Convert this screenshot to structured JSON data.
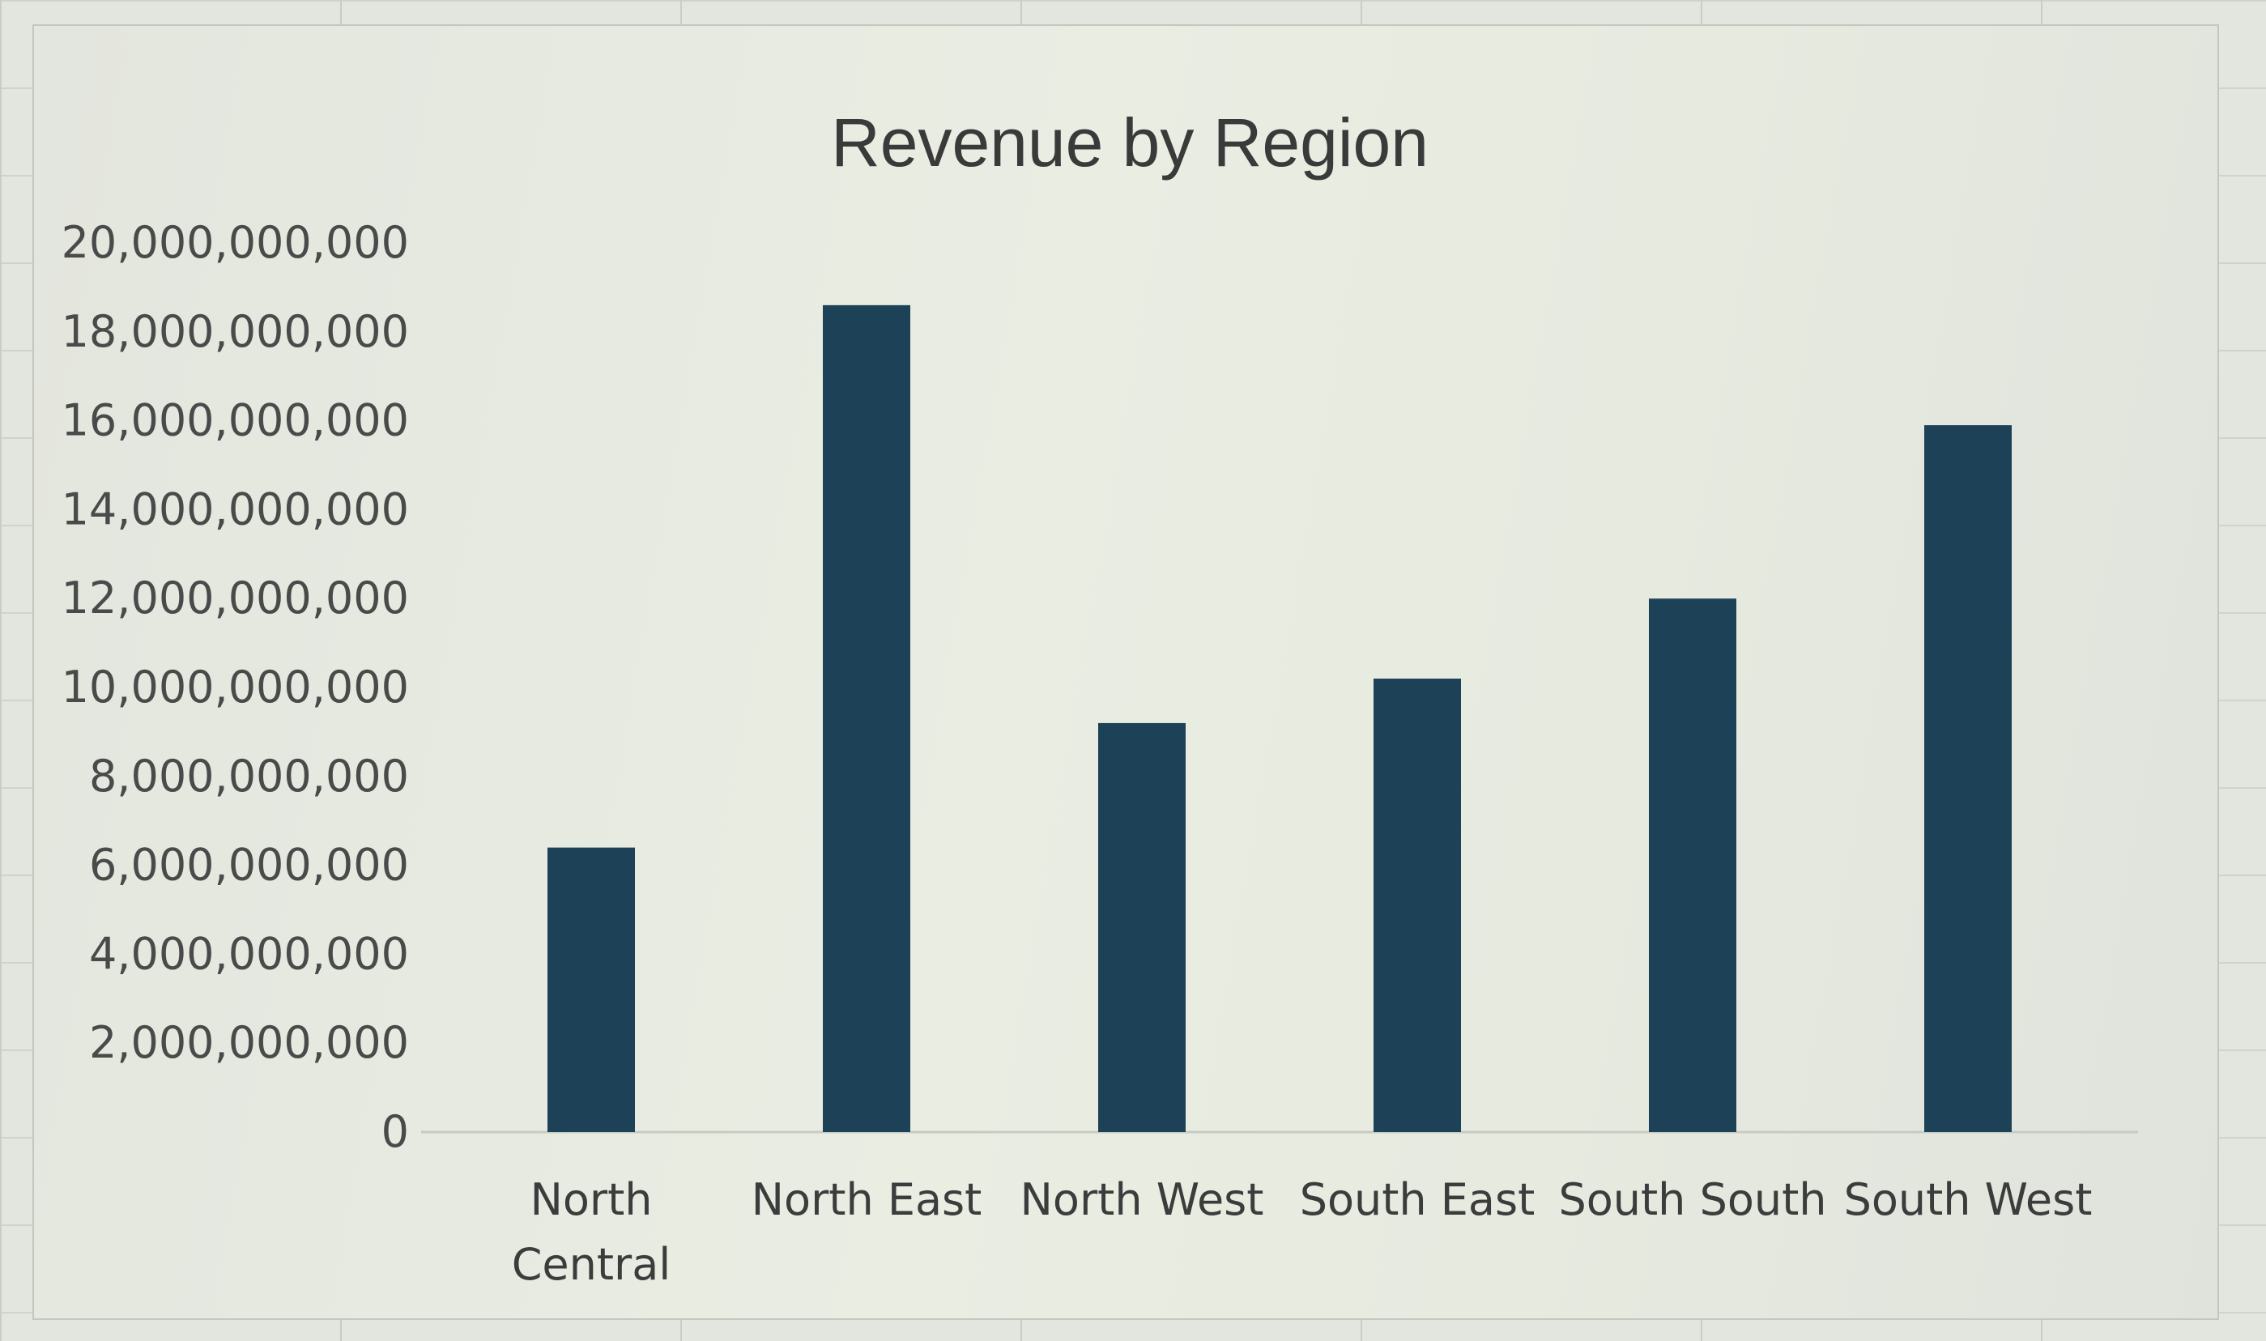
{
  "chart_data": {
    "type": "bar",
    "title": "Revenue by Region",
    "xlabel": "",
    "ylabel": "",
    "categories": [
      "North Central",
      "North East",
      "North West",
      "South East",
      "South South",
      "South West"
    ],
    "category_lines": [
      [
        "North",
        "Central"
      ],
      [
        "North East"
      ],
      [
        "North West"
      ],
      [
        "South East"
      ],
      [
        "South South"
      ],
      [
        "South West"
      ]
    ],
    "values": [
      6400000000,
      18600000000,
      9200000000,
      10200000000,
      12000000000,
      15900000000
    ],
    "ylim": [
      0,
      20000000000
    ],
    "yticks": [
      0,
      2000000000,
      4000000000,
      6000000000,
      8000000000,
      10000000000,
      12000000000,
      14000000000,
      16000000000,
      18000000000,
      20000000000
    ],
    "ytick_labels": [
      "0",
      "2,000,000,000",
      "4,000,000,000",
      "6,000,000,000",
      "8,000,000,000",
      "10,000,000,000",
      "12,000,000,000",
      "14,000,000,000",
      "16,000,000,000",
      "18,000,000,000",
      "20,000,000,000"
    ],
    "grid": false,
    "legend": "none",
    "bar_color": "#1d4257"
  }
}
